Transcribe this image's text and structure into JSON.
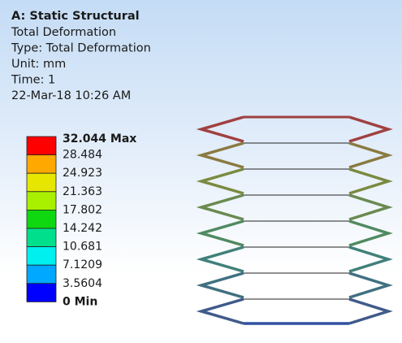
{
  "header": {
    "title": "A: Static Structural",
    "lines": [
      "Total Deformation",
      "Type: Total Deformation",
      "Unit: mm",
      "Time: 1",
      "22-Mar-18 10:26 AM"
    ]
  },
  "legend": {
    "labels": [
      "32.044 Max",
      "28.484",
      "24.923",
      "21.363",
      "17.802",
      "14.242",
      "10.681",
      "7.1209",
      "3.5604",
      "0 Min"
    ],
    "colors": [
      "#ff0000",
      "#ffa800",
      "#e6e600",
      "#a8f000",
      "#10d810",
      "#00e08c",
      "#00f0f0",
      "#00a8ff",
      "#0000ff"
    ]
  }
}
